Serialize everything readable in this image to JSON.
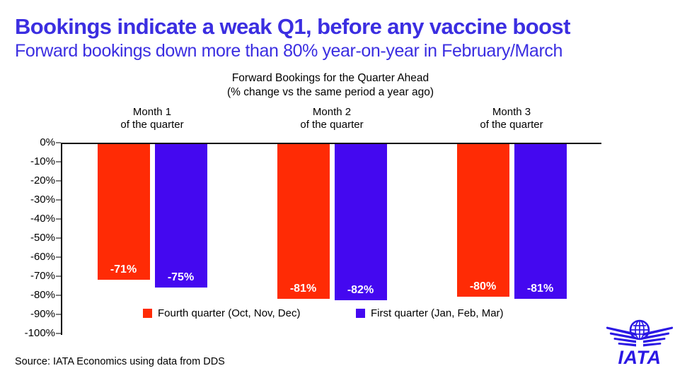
{
  "header": {
    "title": "Bookings indicate a weak Q1, before any vaccine boost",
    "subtitle": "Forward bookings down more than 80% year-on-year in February/March"
  },
  "chart_data": {
    "type": "bar",
    "title": "Forward Bookings for the Quarter Ahead",
    "subtitle": "(% change vs the same period a year ago)",
    "categories": [
      {
        "line1": "Month 1",
        "line2": "of the quarter"
      },
      {
        "line1": "Month 2",
        "line2": "of the quarter"
      },
      {
        "line1": "Month 3",
        "line2": "of the quarter"
      }
    ],
    "series": [
      {
        "name": "Fourth quarter (Oct, Nov, Dec)",
        "color": "#FF2B05",
        "values": [
          -71,
          -81,
          -80
        ],
        "labels": [
          "-71%",
          "-81%",
          "-80%"
        ]
      },
      {
        "name": "First quarter (Jan, Feb, Mar)",
        "color": "#4408F0",
        "values": [
          -75,
          -82,
          -81
        ],
        "labels": [
          "-75%",
          "-82%",
          "-81%"
        ]
      }
    ],
    "ylim": [
      -100,
      0
    ],
    "ytick_step": 10,
    "ytick_labels": [
      "0%",
      "-10%",
      "-20%",
      "-30%",
      "-40%",
      "-50%",
      "-60%",
      "-70%",
      "-80%",
      "-90%",
      "-100%"
    ],
    "grid": false,
    "legend_position": "bottom-inside"
  },
  "footer": {
    "source": "Source: IATA Economics using data from DDS"
  },
  "logo": {
    "text": "IATA",
    "color": "#2B18E4"
  },
  "colors": {
    "headline": "#3B2EE1",
    "axis": "#000000",
    "tick": "#808080",
    "bar_label": "#FFFFFF"
  }
}
